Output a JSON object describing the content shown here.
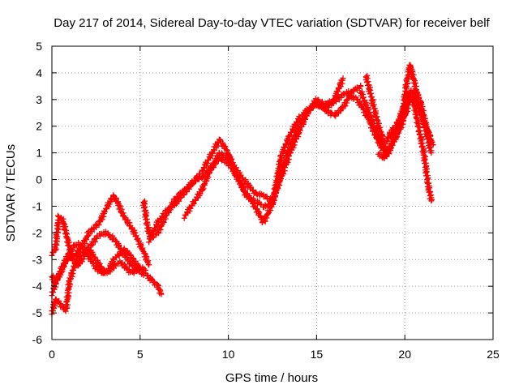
{
  "chart_data": {
    "type": "scatter",
    "title": "Day 217 of 2014, Sidereal Day-to-day VTEC variation (SDTVAR) for receiver belf",
    "xlabel": "GPS time / hours",
    "ylabel": "SDTVAR / TECUs",
    "xlim": [
      0,
      25
    ],
    "ylim": [
      -6,
      5
    ],
    "xticks": [
      "0",
      "5",
      "10",
      "15",
      "20",
      "25"
    ],
    "yticks": [
      "-6",
      "-5",
      "-4",
      "-3",
      "-2",
      "-1",
      "0",
      "1",
      "2",
      "3",
      "4",
      "5"
    ],
    "grid": true,
    "marker": "+",
    "color": "#ff0000",
    "series": [
      {
        "x": [
          0.0,
          0.2,
          0.4,
          0.6,
          0.8,
          1.0,
          1.3,
          1.6,
          2.0,
          2.3,
          2.6,
          3.0,
          3.3,
          3.6,
          3.9,
          4.2,
          4.5,
          4.8,
          5.1,
          5.4,
          5.7,
          6.0,
          6.2
        ],
        "y": [
          -5.0,
          -4.5,
          -4.6,
          -4.8,
          -4.9,
          -3.8,
          -3.2,
          -2.8,
          -2.6,
          -2.4,
          -2.1,
          -2.0,
          -2.1,
          -2.3,
          -2.6,
          -2.9,
          -3.2,
          -3.3,
          -3.5,
          -3.6,
          -3.8,
          -4.0,
          -4.3
        ]
      },
      {
        "x": [
          0.0,
          0.2,
          0.5,
          0.8,
          1.1,
          1.4,
          1.7,
          2.0,
          2.3,
          2.6,
          2.9,
          3.2,
          3.5,
          3.8,
          4.1,
          4.4,
          4.7,
          5.0,
          5.3
        ],
        "y": [
          -3.6,
          -3.9,
          -3.5,
          -3.0,
          -2.6,
          -2.4,
          -2.5,
          -2.8,
          -3.1,
          -3.4,
          -3.5,
          -3.4,
          -3.0,
          -2.8,
          -2.6,
          -2.8,
          -3.1,
          -3.3,
          -3.4
        ]
      },
      {
        "x": [
          0.0,
          0.2,
          0.4,
          0.6,
          0.8,
          1.0,
          1.2,
          1.5,
          1.8,
          2.1,
          2.4,
          2.7,
          3.0,
          3.3,
          3.5,
          3.7,
          4.0,
          4.3,
          4.6,
          4.9,
          5.2,
          5.5
        ],
        "y": [
          -2.8,
          -2.6,
          -1.4,
          -1.5,
          -2.0,
          -2.6,
          -2.9,
          -2.7,
          -2.4,
          -2.0,
          -1.8,
          -1.6,
          -1.2,
          -0.8,
          -0.6,
          -0.8,
          -1.3,
          -1.6,
          -1.9,
          -2.3,
          -2.7,
          -3.2
        ]
      },
      {
        "x": [
          0.0,
          0.3,
          0.6,
          0.9,
          1.2,
          1.5,
          1.8,
          2.1,
          2.4,
          2.7,
          3.0,
          3.3,
          3.6,
          3.9,
          4.2,
          4.5,
          4.8,
          5.0
        ],
        "y": [
          -4.3,
          -3.7,
          -3.3,
          -2.9,
          -3.0,
          -3.2,
          -2.9,
          -2.6,
          -2.9,
          -3.2,
          -3.5,
          -3.4,
          -3.2,
          -3.1,
          -3.3,
          -3.5,
          -3.4,
          -3.3
        ]
      },
      {
        "x": [
          5.2,
          5.4,
          5.6,
          6.0,
          6.5,
          7.0,
          7.5,
          8.0,
          8.5,
          9.0,
          9.5,
          10.0,
          10.5,
          11.0,
          11.5,
          12.0,
          12.5,
          13.0,
          13.5,
          14.0,
          14.5,
          15.0,
          15.5,
          16.0,
          16.5,
          17.0
        ],
        "y": [
          -0.8,
          -1.7,
          -2.2,
          -2.0,
          -1.3,
          -0.7,
          -0.4,
          -0.1,
          0.1,
          0.4,
          0.8,
          0.6,
          0.1,
          -0.5,
          -1.0,
          -1.6,
          -0.9,
          0.9,
          1.7,
          2.3,
          2.6,
          2.8,
          2.7,
          2.9,
          3.2,
          3.3
        ]
      },
      {
        "x": [
          5.5,
          6.0,
          6.5,
          7.0,
          7.5,
          8.0,
          8.5,
          9.0,
          9.5,
          10.0,
          10.5,
          11.0,
          11.5,
          12.0,
          12.5,
          13.0,
          13.5,
          14.0,
          14.5,
          15.0,
          15.5,
          16.0,
          16.5,
          17.0,
          17.5
        ],
        "y": [
          -2.3,
          -1.6,
          -1.2,
          -0.9,
          -0.5,
          -0.1,
          0.3,
          0.9,
          1.5,
          1.0,
          0.1,
          -0.6,
          -0.8,
          -1.0,
          -0.9,
          0.3,
          1.3,
          2.0,
          2.6,
          2.9,
          2.6,
          2.4,
          2.7,
          3.3,
          3.5
        ]
      },
      {
        "x": [
          7.5,
          8.0,
          8.5,
          9.0,
          9.5,
          10.0,
          10.5,
          11.0,
          11.5,
          12.0,
          12.5,
          13.0,
          13.5,
          14.0,
          14.5,
          15.0,
          15.5,
          16.0,
          16.5
        ],
        "y": [
          -1.4,
          -0.9,
          -0.4,
          0.4,
          1.0,
          0.8,
          0.3,
          -0.1,
          -0.5,
          -0.6,
          -0.8,
          0.1,
          1.0,
          1.8,
          2.5,
          3.0,
          2.8,
          3.0,
          3.8
        ]
      },
      {
        "x": [
          17.0,
          17.3,
          17.6,
          18.0,
          18.3,
          18.6,
          18.9,
          19.2,
          19.5,
          19.8,
          20.1,
          20.3,
          20.5,
          20.8,
          21.0,
          21.2,
          21.4,
          21.6
        ],
        "y": [
          3.1,
          3.0,
          2.7,
          2.2,
          1.7,
          1.3,
          1.0,
          1.2,
          1.6,
          2.0,
          2.8,
          3.3,
          3.1,
          2.7,
          2.3,
          2.0,
          1.6,
          1.3
        ]
      },
      {
        "x": [
          17.8,
          18.1,
          18.4,
          18.7,
          19.0,
          19.3,
          19.6,
          19.9,
          20.1,
          20.3,
          20.6,
          20.9,
          21.2,
          21.5
        ],
        "y": [
          3.9,
          3.1,
          2.3,
          1.6,
          0.9,
          1.4,
          2.1,
          2.6,
          3.6,
          4.3,
          3.5,
          2.6,
          1.8,
          1.0
        ]
      },
      {
        "x": [
          17.5,
          17.8,
          18.1,
          18.4,
          18.7,
          19.0,
          19.3,
          19.6,
          19.9,
          20.2,
          20.5,
          20.8,
          21.1,
          21.3,
          21.5
        ],
        "y": [
          3.3,
          2.8,
          2.3,
          1.8,
          1.3,
          1.5,
          1.9,
          2.1,
          2.6,
          3.2,
          2.9,
          1.9,
          0.9,
          -0.1,
          -0.8
        ]
      },
      {
        "x": [
          18.5,
          18.8,
          19.1,
          19.4,
          19.7,
          20.0,
          20.3,
          20.6,
          20.9,
          21.2,
          21.5
        ],
        "y": [
          1.0,
          0.8,
          1.1,
          1.6,
          2.0,
          2.4,
          3.0,
          3.3,
          2.9,
          2.0,
          1.4
        ]
      }
    ]
  }
}
